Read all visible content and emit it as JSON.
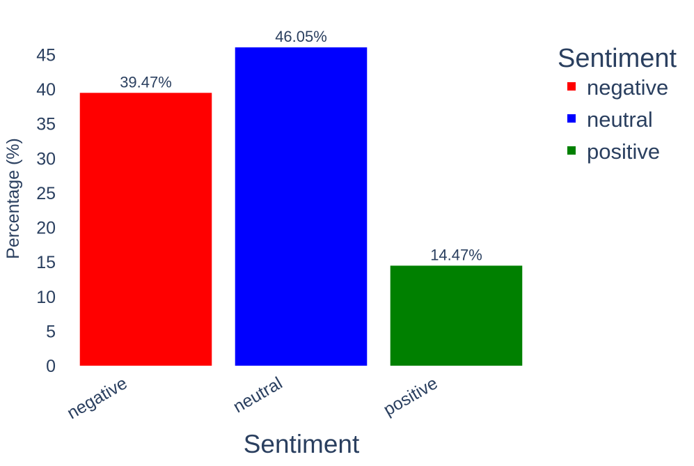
{
  "chart_data": {
    "type": "bar",
    "categories": [
      "negative",
      "neutral",
      "positive"
    ],
    "values": [
      39.47,
      46.05,
      14.47
    ],
    "data_labels": [
      "39.47%",
      "46.05%",
      "14.47%"
    ],
    "colors": [
      "#ff0000",
      "#0000ff",
      "#008000"
    ],
    "xlabel": "Sentiment",
    "ylabel": "Percentage (%)",
    "ylim": [
      0,
      46.05
    ],
    "yticks": [
      0,
      5,
      10,
      15,
      20,
      25,
      30,
      35,
      40,
      45
    ],
    "grid": false,
    "legend": {
      "title": "Sentiment",
      "placement": "top-right",
      "items": [
        "negative",
        "neutral",
        "positive"
      ]
    },
    "text_color": "#2a3f5f"
  }
}
